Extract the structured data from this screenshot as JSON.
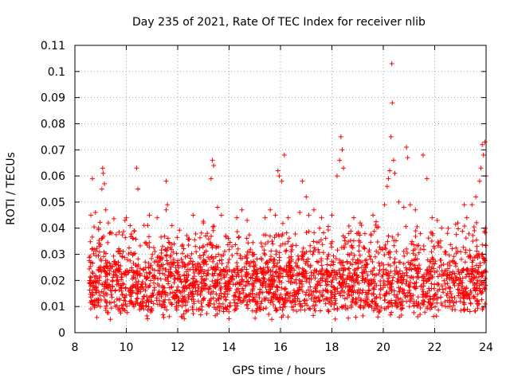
{
  "chart_data": {
    "type": "scatter",
    "title": "Day 235 of 2021, Rate Of TEC Index for receiver nlib",
    "xlabel": "GPS time / hours",
    "ylabel": "ROTI / TECUs",
    "xlim": [
      8,
      24
    ],
    "ylim": [
      0,
      0.11
    ],
    "xticks": [
      "8",
      "10",
      "12",
      "14",
      "16",
      "18",
      "20",
      "22",
      "24"
    ],
    "yticks": [
      "0",
      "0.01",
      "0.02",
      "0.03",
      "0.04",
      "0.05",
      "0.06",
      "0.07",
      "0.08",
      "0.09",
      "0.1",
      "0.11"
    ],
    "grid": true,
    "marker": "plus",
    "colors": {
      "points": "#ff0000",
      "grid": "#a0a0a0",
      "axis": "#000000"
    },
    "data_coverage": {
      "x_start": 8.55,
      "x_end": 24.0,
      "typical_range": [
        0.005,
        0.035
      ],
      "median": 0.016
    },
    "points": [
      [
        8.62,
        0.045
      ],
      [
        8.68,
        0.059
      ],
      [
        8.8,
        0.046
      ],
      [
        8.92,
        0.04
      ],
      [
        9.05,
        0.055
      ],
      [
        9.08,
        0.063
      ],
      [
        9.1,
        0.061
      ],
      [
        9.15,
        0.057
      ],
      [
        9.2,
        0.047
      ],
      [
        9.3,
        0.042
      ],
      [
        9.35,
        0.038
      ],
      [
        9.95,
        0.043
      ],
      [
        10.0,
        0.044
      ],
      [
        10.15,
        0.041
      ],
      [
        10.3,
        0.039
      ],
      [
        10.4,
        0.063
      ],
      [
        10.45,
        0.055
      ],
      [
        10.9,
        0.045
      ],
      [
        11.2,
        0.044
      ],
      [
        11.55,
        0.058
      ],
      [
        11.6,
        0.049
      ],
      [
        11.55,
        0.047
      ],
      [
        12.6,
        0.045
      ],
      [
        13.0,
        0.042
      ],
      [
        13.35,
        0.066
      ],
      [
        13.4,
        0.064
      ],
      [
        13.3,
        0.059
      ],
      [
        13.55,
        0.048
      ],
      [
        13.7,
        0.045
      ],
      [
        14.3,
        0.044
      ],
      [
        14.5,
        0.047
      ],
      [
        14.7,
        0.043
      ],
      [
        15.4,
        0.044
      ],
      [
        15.6,
        0.047
      ],
      [
        15.8,
        0.045
      ],
      [
        15.9,
        0.062
      ],
      [
        15.95,
        0.06
      ],
      [
        16.05,
        0.058
      ],
      [
        16.15,
        0.068
      ],
      [
        16.3,
        0.044
      ],
      [
        16.75,
        0.046
      ],
      [
        16.85,
        0.058
      ],
      [
        17.0,
        0.052
      ],
      [
        17.1,
        0.045
      ],
      [
        17.3,
        0.047
      ],
      [
        17.6,
        0.044
      ],
      [
        18.0,
        0.045
      ],
      [
        18.2,
        0.06
      ],
      [
        18.3,
        0.066
      ],
      [
        18.35,
        0.075
      ],
      [
        18.4,
        0.07
      ],
      [
        18.45,
        0.063
      ],
      [
        18.85,
        0.044
      ],
      [
        19.1,
        0.042
      ],
      [
        19.6,
        0.045
      ],
      [
        20.05,
        0.049
      ],
      [
        20.15,
        0.056
      ],
      [
        20.2,
        0.059
      ],
      [
        20.25,
        0.062
      ],
      [
        20.3,
        0.075
      ],
      [
        20.33,
        0.103
      ],
      [
        20.35,
        0.088
      ],
      [
        20.4,
        0.066
      ],
      [
        20.45,
        0.061
      ],
      [
        20.6,
        0.05
      ],
      [
        20.8,
        0.048
      ],
      [
        20.9,
        0.071
      ],
      [
        20.95,
        0.067
      ],
      [
        21.05,
        0.049
      ],
      [
        21.25,
        0.047
      ],
      [
        21.55,
        0.068
      ],
      [
        21.7,
        0.059
      ],
      [
        21.9,
        0.044
      ],
      [
        22.1,
        0.043
      ],
      [
        22.5,
        0.038
      ],
      [
        22.9,
        0.042
      ],
      [
        23.15,
        0.049
      ],
      [
        23.25,
        0.044
      ],
      [
        23.45,
        0.049
      ],
      [
        23.6,
        0.052
      ],
      [
        23.75,
        0.058
      ],
      [
        23.8,
        0.063
      ],
      [
        23.85,
        0.072
      ],
      [
        23.9,
        0.068
      ],
      [
        23.95,
        0.073
      ],
      [
        24.0,
        0.06
      ]
    ]
  }
}
